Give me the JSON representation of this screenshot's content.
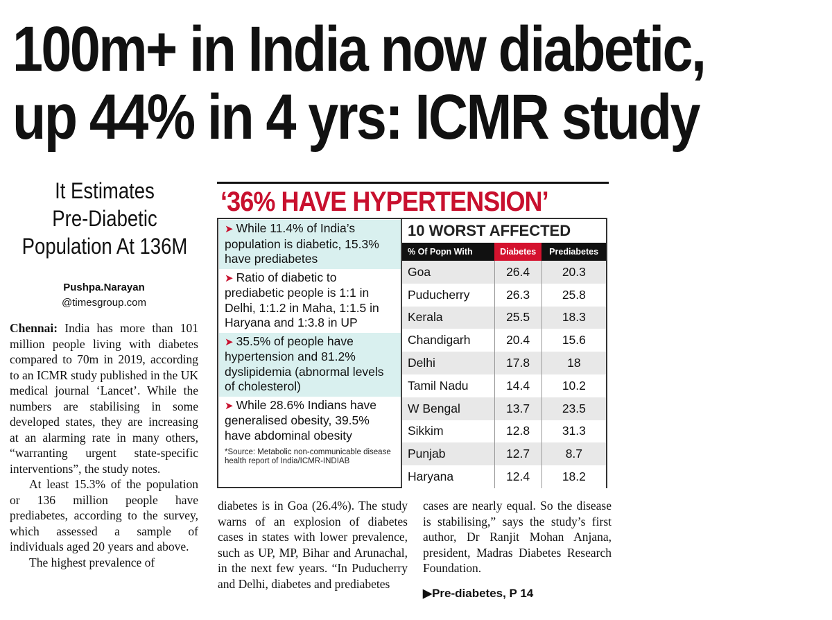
{
  "headline": {
    "line1": "100m+ in India now diabetic,",
    "line2": "up 44% in 4 yrs: ICMR study"
  },
  "deck": {
    "line1": "It Estimates",
    "line2": "Pre-Diabetic",
    "line3": "Population At 136M"
  },
  "byline": {
    "name": "Pushpa.Narayan",
    "org": "@timesgroup.com"
  },
  "article": {
    "dateline": "Chennai:",
    "p1": " India has more than 101 million people living with diabetes compared to 70m in 2019, according to an ICMR study published in the UK medical journal ‘Lancet’. While the numbers are stabilising in some developed states, they are increasing at an alarming rate in many others, “warranting urgent state-specific interventions”, the study notes.",
    "p2": "At least 15.3% of the population or 136 million people have prediabetes, according to the survey, which assessed a sample of individuals aged 20 years and above.",
    "p3": "The highest prevalence of",
    "col2": "diabetes is in Goa (26.4%). The study warns of an explosion of diabetes cases in states with lower prevalence, such as UP, MP, Bihar and Arunachal, in the next few years. “In Puducherry and Delhi, diabetes and prediabetes",
    "col3": "cases are nearly equal. So the disease is stabilising,” says the study’s first author, Dr Ranjit Mohan Anjana, president, Madras Diabetes Research Foundation.",
    "see_also": "▶Pre-diabetes, P 14"
  },
  "graphic": {
    "title": "‘36% HAVE HYPERTENSION’",
    "bullet_glyph": "➤",
    "bullets": [
      "While 11.4% of India’s population is diabetic, 15.3% have prediabetes",
      "Ratio of diabetic to prediabetic people is 1:1 in Delhi, 1:1.2 in Maha, 1:1.5 in Haryana and 1:3.8 in UP",
      "35.5% of people have hypertension and 81.2% dyslipidemia (abnormal levels of cholesterol)",
      "While 28.6% Indians have generalised obesity, 39.5% have abdominal obesity"
    ],
    "source": "*Source: Metabolic non-communicable disease health report of India/ICMR-INDIAB",
    "colors": {
      "title": "#c8102e",
      "shade": "#d9f0ef",
      "diabetes_header": "#d4122e"
    }
  },
  "chart_data": {
    "type": "table",
    "title": "10 WORST AFFECTED",
    "columns": [
      "% Of Popn With",
      "Diabetes",
      "Prediabetes"
    ],
    "rows": [
      [
        "Goa",
        "26.4",
        "20.3"
      ],
      [
        "Puducherry",
        "26.3",
        "25.8"
      ],
      [
        "Kerala",
        "25.5",
        "18.3"
      ],
      [
        "Chandigarh",
        "20.4",
        "15.6"
      ],
      [
        "Delhi",
        "17.8",
        "18"
      ],
      [
        "Tamil Nadu",
        "14.4",
        "10.2"
      ],
      [
        "W Bengal",
        "13.7",
        "23.5"
      ],
      [
        "Sikkim",
        "12.8",
        "31.3"
      ],
      [
        "Punjab",
        "12.7",
        "8.7"
      ],
      [
        "Haryana",
        "12.4",
        "18.2"
      ]
    ]
  }
}
